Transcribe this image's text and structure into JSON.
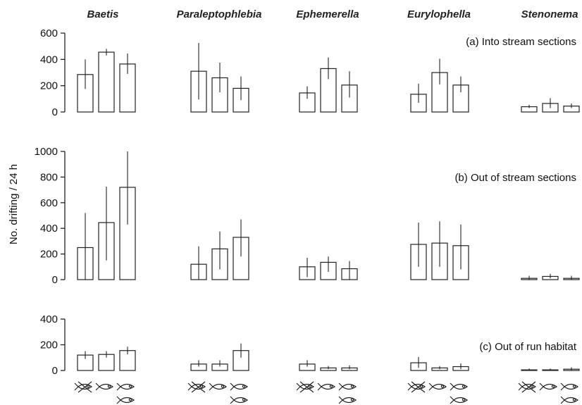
{
  "chart_data": {
    "type": "bar",
    "ylabel": "No. drifting / 24 h",
    "groups": [
      "Baetis",
      "Paraleptophlebia",
      "Ephemerella",
      "Eurylophella",
      "Stenonema"
    ],
    "treatment_icons": [
      "no-fish",
      "one-fish",
      "two-fish"
    ],
    "panels": [
      {
        "title": "(a) Into stream sections",
        "ylim": [
          0,
          600
        ],
        "yticks": [
          0,
          200,
          400,
          600
        ],
        "values": [
          [
            285,
            455,
            365
          ],
          [
            310,
            260,
            180
          ],
          [
            145,
            330,
            205
          ],
          [
            135,
            300,
            205
          ],
          [
            40,
            65,
            45
          ]
        ],
        "err_low": [
          [
            175,
            430,
            290
          ],
          [
            95,
            150,
            90
          ],
          [
            100,
            250,
            110
          ],
          [
            70,
            210,
            150
          ],
          [
            30,
            30,
            30
          ]
        ],
        "err_high": [
          [
            400,
            480,
            445
          ],
          [
            525,
            375,
            270
          ],
          [
            195,
            415,
            310
          ],
          [
            215,
            405,
            270
          ],
          [
            55,
            105,
            65
          ]
        ]
      },
      {
        "title": "(b) Out of stream sections",
        "ylim": [
          0,
          1000
        ],
        "yticks": [
          0,
          200,
          400,
          600,
          800,
          1000
        ],
        "values": [
          [
            250,
            445,
            720
          ],
          [
            120,
            240,
            330
          ],
          [
            100,
            135,
            85
          ],
          [
            275,
            285,
            265
          ],
          [
            10,
            25,
            10
          ]
        ],
        "err_low": [
          [
            0,
            150,
            430
          ],
          [
            0,
            80,
            180
          ],
          [
            20,
            60,
            0
          ],
          [
            100,
            100,
            80
          ],
          [
            0,
            10,
            0
          ]
        ],
        "err_high": [
          [
            520,
            725,
            1000
          ],
          [
            260,
            375,
            470
          ],
          [
            170,
            180,
            145
          ],
          [
            445,
            455,
            430
          ],
          [
            30,
            45,
            30
          ]
        ]
      },
      {
        "title": "(c) Out of run habitat",
        "ylim": [
          0,
          400
        ],
        "yticks": [
          0,
          200,
          400
        ],
        "values": [
          [
            120,
            125,
            155
          ],
          [
            50,
            50,
            155
          ],
          [
            50,
            20,
            20
          ],
          [
            60,
            20,
            30
          ],
          [
            5,
            5,
            10
          ]
        ],
        "err_low": [
          [
            90,
            100,
            125
          ],
          [
            30,
            30,
            100
          ],
          [
            30,
            10,
            10
          ],
          [
            20,
            10,
            10
          ],
          [
            0,
            0,
            0
          ]
        ],
        "err_high": [
          [
            150,
            150,
            185
          ],
          [
            80,
            80,
            210
          ],
          [
            80,
            35,
            40
          ],
          [
            105,
            35,
            55
          ],
          [
            15,
            15,
            25
          ]
        ]
      }
    ]
  }
}
